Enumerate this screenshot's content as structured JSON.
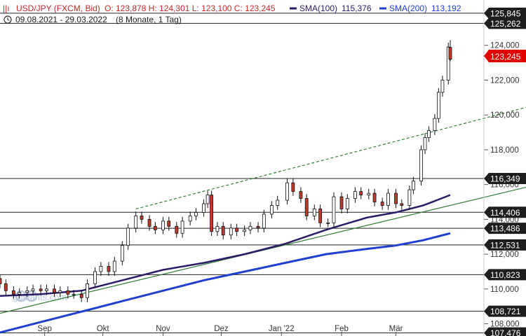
{
  "header": {
    "instrument": "USD/JPY (FXCM, Bid)",
    "ohlc": "O: 123,878  H: 124,301  L: 123,100  C: 123,245",
    "sma100_label": "SMA(100)",
    "sma100_value": "115,376",
    "sma200_label": "SMA(200)",
    "sma200_value": "113,192",
    "period": "09.08.2021 - 29.03.2022",
    "range": "(8 Monate, 1 Tag)"
  },
  "watermark": "guidants.com",
  "colors": {
    "up": "#ffffff",
    "down": "#c0392b",
    "sma100": "#2d1b69",
    "sma200": "#1f3fd1",
    "trend_solid": "#2e7d32",
    "trend_dashed": "#2e7d32",
    "last_price": "#e00000"
  },
  "chart_data": {
    "type": "candlestick",
    "x_range": [
      "2021-08-09",
      "2022-03-29"
    ],
    "ylim": [
      107.5,
      126.0
    ],
    "y_ticks": [
      "108,000",
      "110,000",
      "112,000",
      "114,000",
      "116,000",
      "118,000",
      "120,000",
      "122,000",
      "124,000"
    ],
    "y_tick_values": [
      108,
      110,
      112,
      114,
      116,
      118,
      120,
      122,
      124
    ],
    "x_ticks": [
      "Sep",
      "Okt",
      "Nov",
      "Dez",
      "Jan '22",
      "Feb",
      "Mär"
    ],
    "x_tick_dates": [
      "2021-09-01",
      "2021-10-01",
      "2021-11-01",
      "2021-12-01",
      "2022-01-01",
      "2022-02-01",
      "2022-03-01"
    ],
    "last_price": "123,245",
    "last_ohlc": {
      "open": 123.878,
      "high": 124.301,
      "low": 123.1,
      "close": 123.245
    },
    "horizontal_levels": [
      {
        "label": "125,845",
        "value": 125.845
      },
      {
        "label": "125,262",
        "value": 125.262
      },
      {
        "label": "116,349",
        "value": 116.349
      },
      {
        "label": "114,406",
        "value": 114.406
      },
      {
        "label": "113,486",
        "value": 113.486
      },
      {
        "label": "112,531",
        "value": 112.531
      },
      {
        "label": "110,823",
        "value": 110.823
      },
      {
        "label": "108,721",
        "value": 108.721
      },
      {
        "label": "107,476",
        "value": 107.476
      }
    ],
    "trendlines": [
      {
        "style": "solid",
        "from": [
          "2021-08-09",
          108.6
        ],
        "to": [
          "2022-03-29",
          114.8
        ]
      },
      {
        "style": "dashed",
        "from": [
          "2021-10-18",
          114.6
        ],
        "to": [
          "2022-03-29",
          119.3
        ]
      }
    ],
    "sma100": [
      [
        "2021-08-09",
        109.6
      ],
      [
        "2021-08-30",
        109.7
      ],
      [
        "2021-09-20",
        109.9
      ],
      [
        "2021-10-11",
        110.5
      ],
      [
        "2021-11-01",
        111.1
      ],
      [
        "2021-11-22",
        111.5
      ],
      [
        "2021-12-13",
        112.0
      ],
      [
        "2022-01-03",
        112.6
      ],
      [
        "2022-01-24",
        113.4
      ],
      [
        "2022-02-14",
        114.1
      ],
      [
        "2022-03-01",
        114.4
      ],
      [
        "2022-03-15",
        114.8
      ],
      [
        "2022-03-29",
        115.4
      ]
    ],
    "sma200": [
      [
        "2021-08-09",
        107.5
      ],
      [
        "2021-08-30",
        108.1
      ],
      [
        "2021-09-20",
        108.7
      ],
      [
        "2021-10-11",
        109.3
      ],
      [
        "2021-11-01",
        109.9
      ],
      [
        "2021-11-22",
        110.5
      ],
      [
        "2021-12-13",
        111.0
      ],
      [
        "2022-01-03",
        111.5
      ],
      [
        "2022-01-24",
        112.0
      ],
      [
        "2022-02-14",
        112.3
      ],
      [
        "2022-03-01",
        112.5
      ],
      [
        "2022-03-15",
        112.8
      ],
      [
        "2022-03-29",
        113.2
      ]
    ],
    "closes": [
      [
        "2021-08-09",
        110.3
      ],
      [
        "2021-08-12",
        109.9
      ],
      [
        "2021-08-16",
        109.7
      ],
      [
        "2021-08-19",
        109.8
      ],
      [
        "2021-08-23",
        109.9
      ],
      [
        "2021-08-26",
        110.0
      ],
      [
        "2021-08-30",
        109.9
      ],
      [
        "2021-09-02",
        110.0
      ],
      [
        "2021-09-06",
        109.8
      ],
      [
        "2021-09-09",
        109.9
      ],
      [
        "2021-09-13",
        109.7
      ],
      [
        "2021-09-16",
        109.7
      ],
      [
        "2021-09-20",
        109.5
      ],
      [
        "2021-09-23",
        110.3
      ],
      [
        "2021-09-27",
        111.0
      ],
      [
        "2021-09-30",
        111.3
      ],
      [
        "2021-10-04",
        111.0
      ],
      [
        "2021-10-07",
        111.6
      ],
      [
        "2021-10-11",
        112.5
      ],
      [
        "2021-10-14",
        113.5
      ],
      [
        "2021-10-18",
        114.2
      ],
      [
        "2021-10-21",
        114.0
      ],
      [
        "2021-10-25",
        113.6
      ],
      [
        "2021-10-28",
        113.4
      ],
      [
        "2021-11-01",
        113.9
      ],
      [
        "2021-11-04",
        113.6
      ],
      [
        "2021-11-08",
        113.2
      ],
      [
        "2021-11-11",
        113.9
      ],
      [
        "2021-11-15",
        114.2
      ],
      [
        "2021-11-18",
        114.4
      ],
      [
        "2021-11-22",
        114.9
      ],
      [
        "2021-11-24",
        115.4
      ],
      [
        "2021-11-26",
        113.3
      ],
      [
        "2021-11-29",
        113.6
      ],
      [
        "2021-12-02",
        113.1
      ],
      [
        "2021-12-06",
        113.5
      ],
      [
        "2021-12-09",
        113.3
      ],
      [
        "2021-12-13",
        113.4
      ],
      [
        "2021-12-16",
        113.6
      ],
      [
        "2021-12-20",
        113.5
      ],
      [
        "2021-12-23",
        114.3
      ],
      [
        "2021-12-27",
        114.8
      ],
      [
        "2021-12-30",
        115.1
      ],
      [
        "2022-01-04",
        116.1
      ],
      [
        "2022-01-07",
        115.6
      ],
      [
        "2022-01-11",
        115.2
      ],
      [
        "2022-01-14",
        114.2
      ],
      [
        "2022-01-18",
        114.6
      ],
      [
        "2022-01-21",
        113.8
      ],
      [
        "2022-01-25",
        113.8
      ],
      [
        "2022-01-28",
        115.3
      ],
      [
        "2022-02-01",
        114.6
      ],
      [
        "2022-02-04",
        115.2
      ],
      [
        "2022-02-08",
        115.6
      ],
      [
        "2022-02-11",
        115.4
      ],
      [
        "2022-02-15",
        115.5
      ],
      [
        "2022-02-18",
        115.0
      ],
      [
        "2022-02-22",
        114.8
      ],
      [
        "2022-02-25",
        115.5
      ],
      [
        "2022-03-01",
        114.9
      ],
      [
        "2022-03-04",
        114.8
      ],
      [
        "2022-03-08",
        115.7
      ],
      [
        "2022-03-10",
        116.2
      ],
      [
        "2022-03-14",
        118.0
      ],
      [
        "2022-03-16",
        118.7
      ],
      [
        "2022-03-18",
        119.1
      ],
      [
        "2022-03-21",
        119.8
      ],
      [
        "2022-03-23",
        121.3
      ],
      [
        "2022-03-25",
        122.0
      ],
      [
        "2022-03-28",
        123.9
      ],
      [
        "2022-03-29",
        123.2
      ]
    ]
  }
}
